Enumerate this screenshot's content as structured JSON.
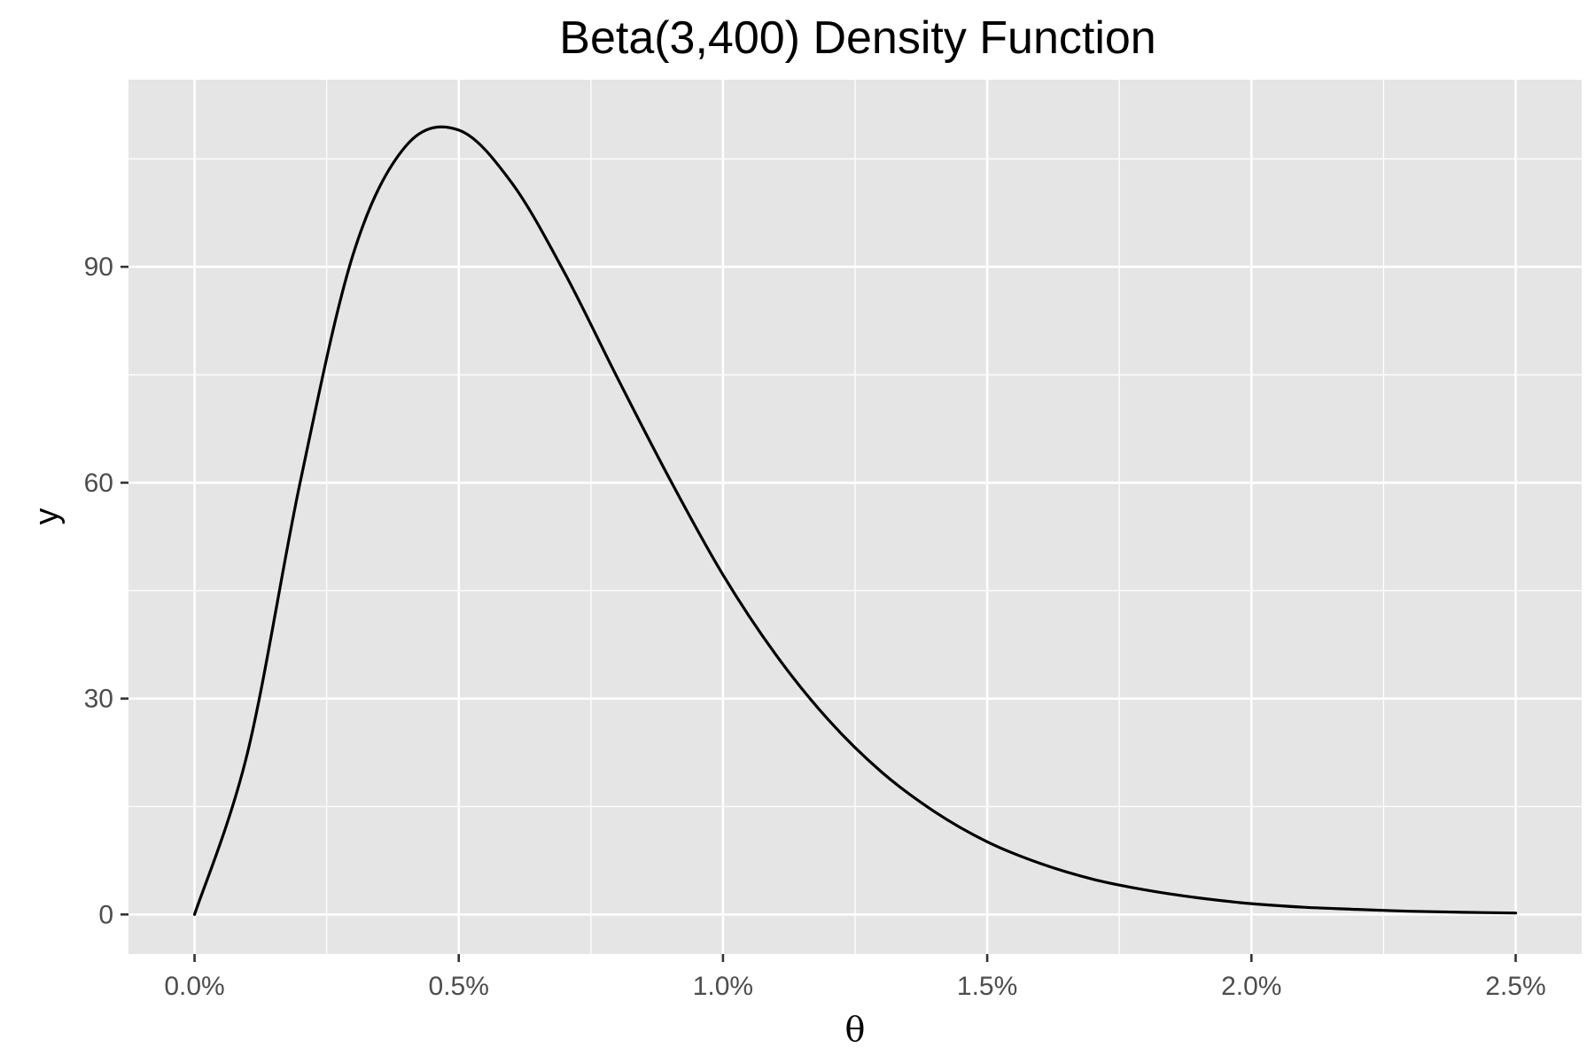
{
  "chart_data": {
    "type": "line",
    "title": "Beta(3,400) Density Function",
    "xlabel": "θ",
    "ylabel": "y",
    "xlim": [
      -0.00125,
      0.02625
    ],
    "ylim": [
      -5.5,
      116
    ],
    "x_ticks": [
      0,
      0.005,
      0.01,
      0.015,
      0.02,
      0.025
    ],
    "x_tick_labels": [
      "0.0%",
      "0.5%",
      "1.0%",
      "1.5%",
      "2.0%",
      "2.5%"
    ],
    "y_ticks": [
      0,
      30,
      60,
      90
    ],
    "y_tick_labels": [
      "0",
      "30",
      "60",
      "90"
    ],
    "grid": true,
    "background": "#e5e5e5",
    "grid_color": "#ffffff",
    "line_color": "#000000",
    "series": [
      {
        "x": [
          0,
          0.001,
          0.002,
          0.003,
          0.004,
          0.005,
          0.006,
          0.007,
          0.008,
          0.009,
          0.01,
          0.011,
          0.012,
          0.013,
          0.014,
          0.015,
          0.016,
          0.017,
          0.018,
          0.019,
          0.02,
          0.021,
          0.022,
          0.023,
          0.024,
          0.025
        ],
        "values": [
          0,
          22.4,
          60.1,
          91.7,
          106.8,
          109.0,
          101.7,
          89.2,
          74.6,
          60.4,
          47.2,
          36.1,
          27.0,
          19.8,
          14.3,
          10.1,
          7.1,
          4.9,
          3.4,
          2.3,
          1.5,
          1.0,
          0.7,
          0.45,
          0.3,
          0.2
        ]
      }
    ]
  }
}
